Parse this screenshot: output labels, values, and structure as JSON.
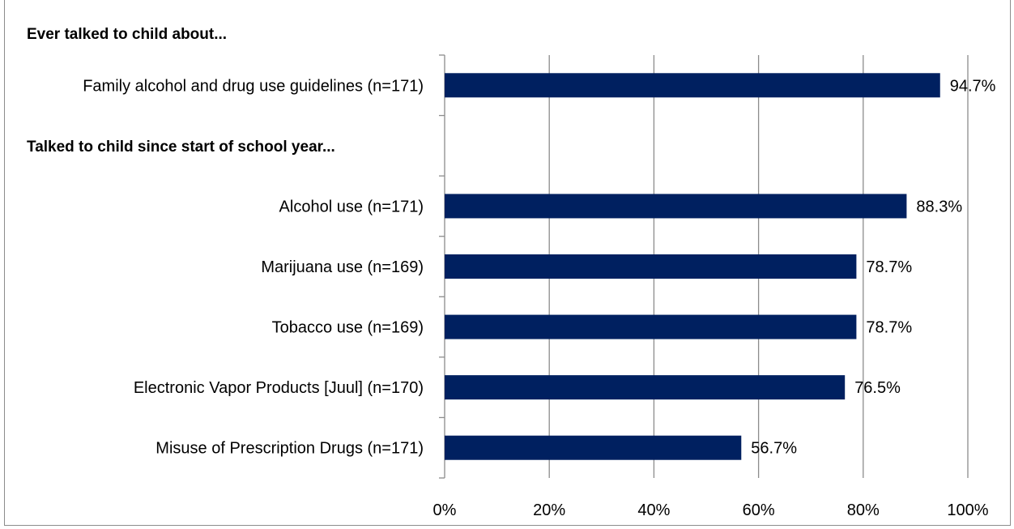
{
  "chart_data": {
    "type": "bar",
    "orientation": "horizontal",
    "groups": [
      {
        "label": "Ever talked to child about...",
        "start_index": 0
      },
      {
        "label": "Talked to child since start of school year...",
        "start_index": 1
      }
    ],
    "categories": [
      "Family alcohol and drug use guidelines (n=171)",
      "Alcohol use (n=171)",
      "Marijuana use (n=169)",
      "Tobacco use (n=169)",
      "Electronic Vapor Products [Juul] (n=170)",
      "Misuse of Prescription Drugs (n=171)"
    ],
    "values": [
      94.7,
      88.3,
      78.7,
      78.7,
      76.5,
      56.7
    ],
    "data_labels": [
      "94.7%",
      "88.3%",
      "78.7%",
      "78.7%",
      "76.5%",
      "56.7%"
    ],
    "xlim": [
      0,
      100
    ],
    "xticks": [
      0,
      20,
      40,
      60,
      80,
      100
    ],
    "xtick_labels": [
      "0%",
      "20%",
      "40%",
      "60%",
      "80%",
      "100%"
    ],
    "grid": true,
    "legend": "none",
    "colors": {
      "bar": "#002060",
      "grid": "#8c8c8c",
      "axis": "#8c8c8c"
    }
  }
}
